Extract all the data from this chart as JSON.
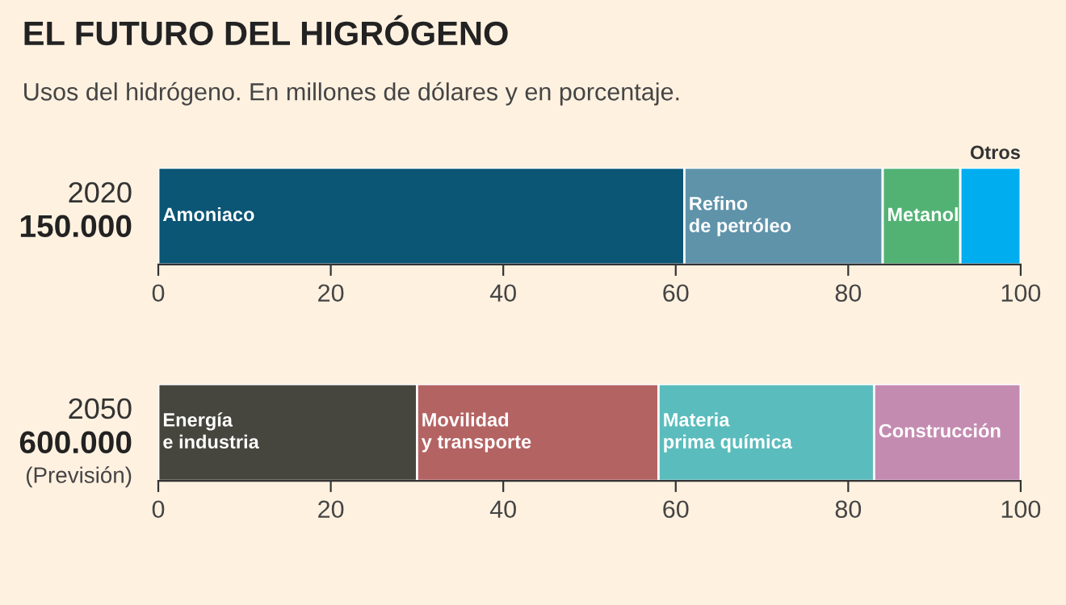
{
  "chart_data": [
    {
      "type": "bar",
      "orientation": "horizontal",
      "stacked": true,
      "title": "EL FUTURO DEL HIGRÓGENO",
      "subtitle": "Usos del hidrógeno. En millones de dólares y en porcentaje.",
      "categories": [
        "2020"
      ],
      "annotations": [
        "150.000"
      ],
      "xlim": [
        0,
        100
      ],
      "xticks": [
        0,
        20,
        40,
        60,
        80,
        100
      ],
      "legend": false,
      "series": [
        {
          "name": "Amoniaco",
          "color": "#0b5575",
          "values": [
            61
          ]
        },
        {
          "name": "Refino\nde petróleo",
          "color": "#5f93aa",
          "values": [
            23
          ]
        },
        {
          "name": "Metanol",
          "color": "#52b274",
          "values": [
            9
          ]
        },
        {
          "name": "Otros",
          "color": "#00aeef",
          "values": [
            7
          ]
        }
      ]
    },
    {
      "type": "bar",
      "orientation": "horizontal",
      "stacked": true,
      "categories": [
        "2050"
      ],
      "annotations": [
        "600.000",
        "(Previsión)"
      ],
      "xlim": [
        0,
        100
      ],
      "xticks": [
        0,
        20,
        40,
        60,
        80,
        100
      ],
      "legend": false,
      "series": [
        {
          "name": "Energía\ne industria",
          "color": "#46463e",
          "values": [
            30
          ]
        },
        {
          "name": "Movilidad\ny transporte",
          "color": "#b46363",
          "values": [
            28
          ]
        },
        {
          "name": "Materia\nprima química",
          "color": "#5bbcbd",
          "values": [
            25
          ]
        },
        {
          "name": "Construcción",
          "color": "#c48bb1",
          "values": [
            17
          ]
        }
      ]
    }
  ]
}
